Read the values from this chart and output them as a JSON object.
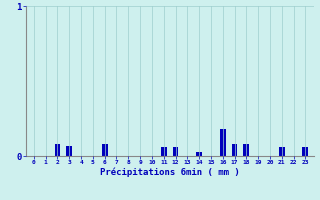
{
  "hours": [
    0,
    1,
    2,
    3,
    4,
    5,
    6,
    7,
    8,
    9,
    10,
    11,
    12,
    13,
    14,
    15,
    16,
    17,
    18,
    19,
    20,
    21,
    22,
    23
  ],
  "values": [
    0.0,
    0.0,
    0.08,
    0.07,
    0.0,
    0.0,
    0.08,
    0.0,
    0.0,
    0.0,
    0.0,
    0.06,
    0.06,
    0.0,
    0.03,
    0.0,
    0.18,
    0.08,
    0.08,
    0.0,
    0.0,
    0.06,
    0.0,
    0.06
  ],
  "bar_color": "#0000bb",
  "bg_color": "#cef0ee",
  "grid_color": "#9ecece",
  "axis_color": "#888888",
  "text_color": "#0000bb",
  "xlabel": "Précipitations 6min ( mm )",
  "ylim": [
    0,
    1.0
  ],
  "ytick_vals": [
    0,
    1
  ],
  "ytick_labels": [
    "0",
    "1"
  ]
}
